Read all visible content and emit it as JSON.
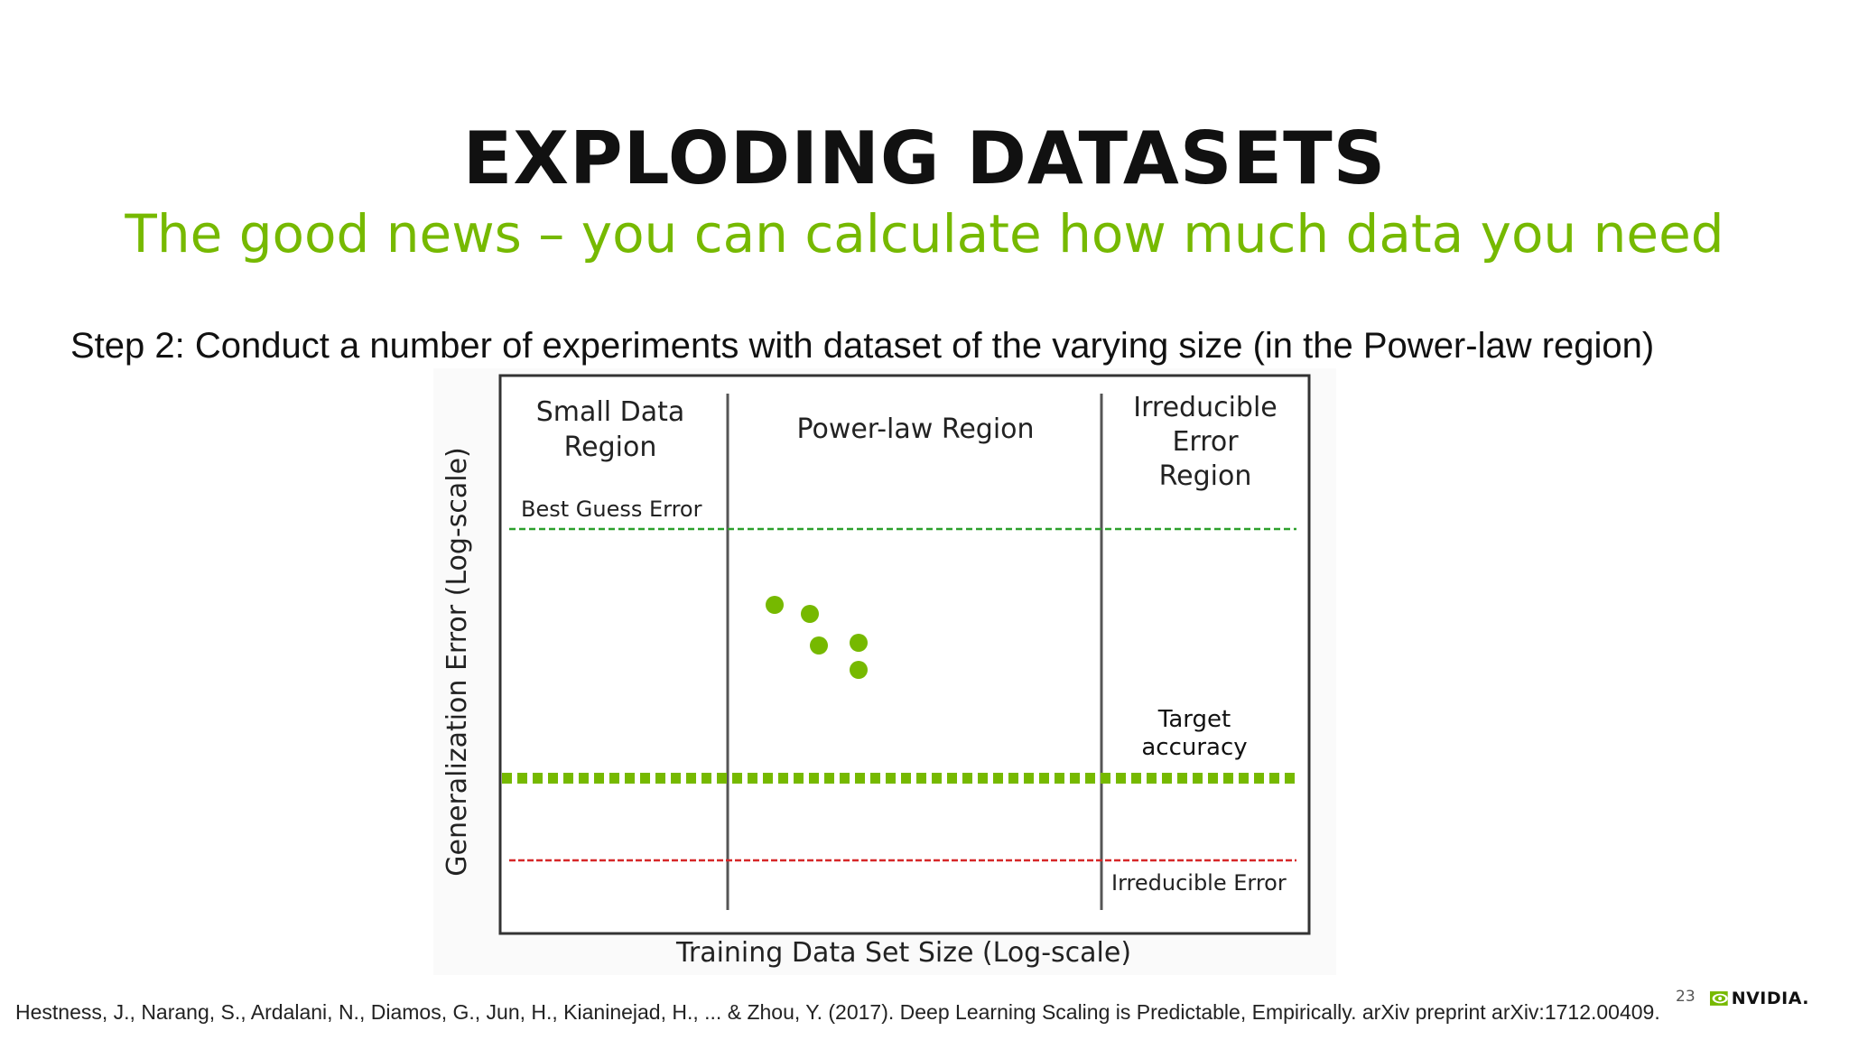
{
  "slide": {
    "title": "EXPLODING DATASETS",
    "subtitle": "The good news – you can calculate how much data you need",
    "step_text": "Step 2: Conduct a number of experiments with dataset of the varying size (in the Power-law region)",
    "citation": "Hestness, J., Narang, S., Ardalani, N., Diamos, G., Jun, H., Kianinejad, H., ... & Zhou, Y. (2017). Deep Learning Scaling is Predictable, Empirically. arXiv preprint arXiv:1712.00409.",
    "page_number": "23",
    "logo_text": "NVIDIA."
  },
  "diagram": {
    "regions": {
      "small": [
        "Small Data",
        "Region"
      ],
      "power": [
        "Power-law Region"
      ],
      "irreducible": [
        "Irreducible",
        "Error",
        "Region"
      ]
    },
    "lines": {
      "best_guess": "Best Guess Error",
      "target": [
        "Target",
        "accuracy"
      ],
      "irreducible": "Irreducible Error"
    },
    "axes": {
      "x_label": "Training Data Set Size (Log-scale)",
      "y_label": "Generalization Error (Log-scale)"
    }
  },
  "colors": {
    "accent_green": "#76b900",
    "best_guess_line": "#2ca02c",
    "irreducible_line": "#d62728",
    "title": "#111111"
  }
}
